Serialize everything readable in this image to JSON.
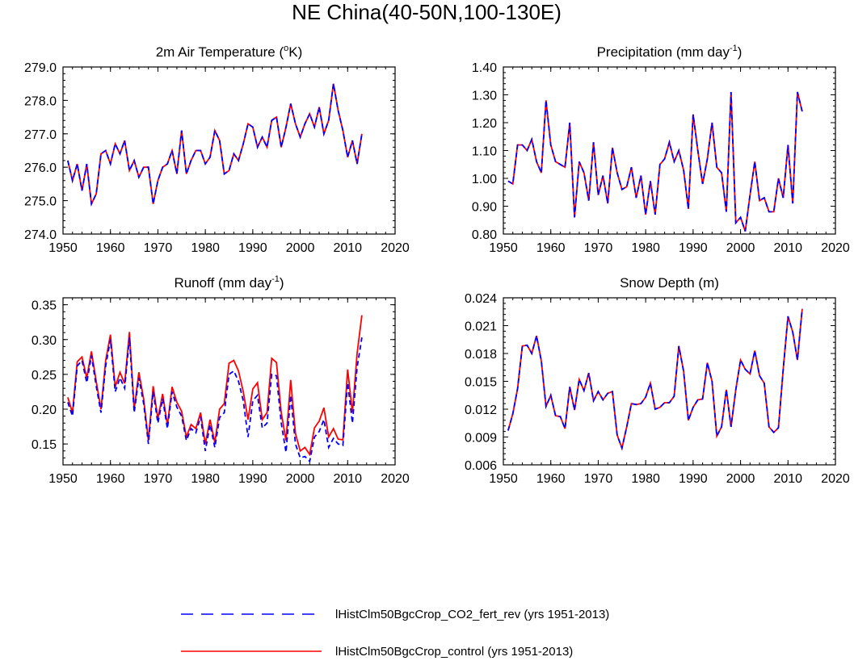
{
  "figure": {
    "title": "NE China(40-50N,100-130E)"
  },
  "legend": {
    "entries": [
      {
        "label": "lHistClm50BgcCrop_CO2_fert_rev (yrs 1951-2013)",
        "color": "#0000ff",
        "style": "dashed"
      },
      {
        "label": "lHistClm50BgcCrop_control (yrs 1951-2013)",
        "color": "#ff0000",
        "style": "solid"
      }
    ]
  },
  "chart_data": [
    {
      "type": "line",
      "title": "2m Air Temperature (",
      "title_sup": "o",
      "title_after": "K)",
      "xlim": [
        1950,
        2020
      ],
      "ylim": [
        274.0,
        279.0
      ],
      "xticks": [
        "1950",
        "1960",
        "1970",
        "1980",
        "1990",
        "2000",
        "2010",
        "2020"
      ],
      "yticks": [
        "274.0",
        "275.0",
        "276.0",
        "277.0",
        "278.0",
        "279.0"
      ],
      "x_start": 1951,
      "series": [
        {
          "name": "lHistClm50BgcCrop_control",
          "color": "#ff0000",
          "values": [
            276.2,
            275.6,
            276.1,
            275.3,
            276.1,
            274.9,
            275.2,
            276.4,
            276.5,
            276.1,
            276.7,
            276.4,
            276.8,
            275.9,
            276.2,
            275.7,
            276.0,
            276.0,
            274.9,
            275.6,
            276.0,
            276.1,
            276.5,
            275.8,
            277.1,
            275.8,
            276.2,
            276.5,
            276.5,
            276.1,
            276.3,
            277.1,
            276.8,
            275.8,
            275.9,
            276.4,
            276.2,
            276.7,
            277.3,
            277.2,
            276.6,
            276.9,
            276.6,
            277.4,
            277.5,
            276.6,
            277.2,
            277.9,
            277.3,
            276.9,
            277.3,
            277.6,
            277.2,
            277.8,
            277.0,
            277.4,
            278.5,
            277.7,
            277.1,
            276.3,
            276.8,
            276.1,
            277.0
          ]
        },
        {
          "name": "lHistClm50BgcCrop_CO2_fert_rev",
          "color": "#0000ff",
          "values": [
            276.2,
            275.6,
            276.1,
            275.3,
            276.1,
            274.9,
            275.2,
            276.4,
            276.5,
            276.1,
            276.7,
            276.4,
            276.8,
            275.9,
            276.2,
            275.7,
            276.0,
            276.0,
            274.9,
            275.6,
            276.0,
            276.1,
            276.5,
            275.8,
            277.1,
            275.8,
            276.2,
            276.5,
            276.5,
            276.1,
            276.3,
            277.1,
            276.8,
            275.8,
            275.9,
            276.4,
            276.2,
            276.7,
            277.3,
            277.2,
            276.6,
            276.9,
            276.6,
            277.4,
            277.5,
            276.6,
            277.2,
            277.9,
            277.3,
            276.9,
            277.3,
            277.6,
            277.2,
            277.8,
            277.0,
            277.4,
            278.5,
            277.7,
            277.1,
            276.3,
            276.8,
            276.1,
            277.0
          ]
        }
      ]
    },
    {
      "type": "line",
      "title": "Precipitation (mm day",
      "title_sup": "-1",
      "title_after": ")",
      "xlim": [
        1950,
        2020
      ],
      "ylim": [
        0.8,
        1.4
      ],
      "xticks": [
        "1950",
        "1960",
        "1970",
        "1980",
        "1990",
        "2000",
        "2010",
        "2020"
      ],
      "yticks": [
        "0.80",
        "0.90",
        "1.00",
        "1.10",
        "1.20",
        "1.30",
        "1.40"
      ],
      "x_start": 1951,
      "series": [
        {
          "name": "lHistClm50BgcCrop_control",
          "color": "#ff0000",
          "values": [
            0.99,
            0.98,
            1.12,
            1.12,
            1.1,
            1.14,
            1.06,
            1.02,
            1.28,
            1.12,
            1.06,
            1.05,
            1.04,
            1.2,
            0.86,
            1.06,
            1.02,
            0.92,
            1.13,
            0.94,
            1.01,
            0.91,
            1.11,
            1.02,
            0.96,
            0.97,
            1.04,
            0.93,
            1.01,
            0.87,
            0.99,
            0.87,
            1.05,
            1.07,
            1.13,
            1.06,
            1.1,
            1.03,
            0.89,
            1.23,
            1.1,
            0.98,
            1.07,
            1.2,
            1.04,
            1.02,
            0.88,
            1.31,
            0.84,
            0.86,
            0.81,
            0.94,
            1.06,
            0.92,
            0.93,
            0.88,
            0.88,
            1.0,
            0.93,
            1.12,
            0.91,
            1.31,
            1.24
          ]
        },
        {
          "name": "lHistClm50BgcCrop_CO2_fert_rev",
          "color": "#0000ff",
          "values": [
            0.99,
            0.98,
            1.12,
            1.12,
            1.1,
            1.14,
            1.06,
            1.02,
            1.28,
            1.12,
            1.06,
            1.05,
            1.04,
            1.2,
            0.86,
            1.06,
            1.02,
            0.92,
            1.13,
            0.94,
            1.01,
            0.91,
            1.11,
            1.02,
            0.96,
            0.97,
            1.04,
            0.93,
            1.01,
            0.87,
            0.99,
            0.87,
            1.05,
            1.07,
            1.13,
            1.06,
            1.1,
            1.03,
            0.89,
            1.23,
            1.1,
            0.98,
            1.07,
            1.2,
            1.04,
            1.02,
            0.88,
            1.31,
            0.84,
            0.86,
            0.81,
            0.94,
            1.06,
            0.92,
            0.93,
            0.88,
            0.88,
            1.0,
            0.93,
            1.12,
            0.91,
            1.31,
            1.24
          ]
        }
      ]
    },
    {
      "type": "line",
      "title": "Runoff (mm day",
      "title_sup": "-1",
      "title_after": ")",
      "xlim": [
        1950,
        2020
      ],
      "ylim": [
        0.12,
        0.36
      ],
      "yticks_values": [
        0.15,
        0.2,
        0.25,
        0.3,
        0.35
      ],
      "xticks": [
        "1950",
        "1960",
        "1970",
        "1980",
        "1990",
        "2000",
        "2010",
        "2020"
      ],
      "yticks": [
        "0.15",
        "0.20",
        "0.25",
        "0.30",
        "0.35"
      ],
      "x_start": 1951,
      "series": [
        {
          "name": "lHistClm50BgcCrop_control",
          "color": "#ff0000",
          "values": [
            0.217,
            0.195,
            0.268,
            0.275,
            0.245,
            0.283,
            0.24,
            0.2,
            0.27,
            0.307,
            0.232,
            0.253,
            0.237,
            0.311,
            0.2,
            0.253,
            0.215,
            0.155,
            0.233,
            0.186,
            0.222,
            0.177,
            0.232,
            0.21,
            0.197,
            0.16,
            0.178,
            0.172,
            0.195,
            0.15,
            0.185,
            0.152,
            0.2,
            0.208,
            0.266,
            0.27,
            0.255,
            0.225,
            0.185,
            0.229,
            0.238,
            0.185,
            0.195,
            0.273,
            0.267,
            0.195,
            0.155,
            0.242,
            0.165,
            0.14,
            0.145,
            0.135,
            0.173,
            0.183,
            0.202,
            0.16,
            0.172,
            0.157,
            0.156,
            0.257,
            0.195,
            0.28,
            0.335
          ]
        },
        {
          "name": "lHistClm50BgcCrop_CO2_fert_rev",
          "color": "#0000ff",
          "values": [
            0.21,
            0.19,
            0.262,
            0.27,
            0.238,
            0.277,
            0.233,
            0.195,
            0.262,
            0.3,
            0.225,
            0.245,
            0.23,
            0.303,
            0.195,
            0.245,
            0.208,
            0.15,
            0.225,
            0.18,
            0.215,
            0.172,
            0.225,
            0.203,
            0.19,
            0.155,
            0.172,
            0.166,
            0.189,
            0.14,
            0.178,
            0.145,
            0.188,
            0.195,
            0.25,
            0.255,
            0.24,
            0.212,
            0.16,
            0.212,
            0.22,
            0.173,
            0.18,
            0.25,
            0.248,
            0.18,
            0.138,
            0.22,
            0.15,
            0.13,
            0.132,
            0.125,
            0.16,
            0.168,
            0.185,
            0.145,
            0.158,
            0.15,
            0.148,
            0.238,
            0.18,
            0.26,
            0.303
          ]
        }
      ]
    },
    {
      "type": "line",
      "title": "Snow Depth (m)",
      "title_sup": "",
      "title_after": "",
      "xlim": [
        1950,
        2020
      ],
      "ylim": [
        0.006,
        0.024
      ],
      "xticks": [
        "1950",
        "1960",
        "1970",
        "1980",
        "1990",
        "2000",
        "2010",
        "2020"
      ],
      "yticks": [
        "0.006",
        "0.009",
        "0.012",
        "0.015",
        "0.018",
        "0.021",
        "0.024"
      ],
      "x_start": 1951,
      "series": [
        {
          "name": "lHistClm50BgcCrop_control",
          "color": "#ff0000",
          "values": [
            0.0097,
            0.0115,
            0.0142,
            0.0188,
            0.0189,
            0.018,
            0.0199,
            0.0172,
            0.0123,
            0.0135,
            0.0113,
            0.0112,
            0.0099,
            0.0144,
            0.0119,
            0.0152,
            0.014,
            0.0159,
            0.0129,
            0.0139,
            0.013,
            0.0137,
            0.0139,
            0.0092,
            0.0078,
            0.0101,
            0.0126,
            0.0125,
            0.0126,
            0.0133,
            0.0148,
            0.012,
            0.0122,
            0.0127,
            0.0127,
            0.0134,
            0.0188,
            0.0161,
            0.0108,
            0.0122,
            0.013,
            0.0131,
            0.017,
            0.015,
            0.0091,
            0.0101,
            0.0141,
            0.0101,
            0.0141,
            0.0173,
            0.0163,
            0.0158,
            0.0183,
            0.0156,
            0.0148,
            0.0101,
            0.0095,
            0.01,
            0.0163,
            0.022,
            0.0203,
            0.0173,
            0.0228
          ]
        },
        {
          "name": "lHistClm50BgcCrop_CO2_fert_rev",
          "color": "#0000ff",
          "values": [
            0.0097,
            0.0115,
            0.0142,
            0.0188,
            0.0189,
            0.018,
            0.0199,
            0.0172,
            0.0123,
            0.0135,
            0.0113,
            0.0112,
            0.0099,
            0.0144,
            0.0119,
            0.0152,
            0.014,
            0.0159,
            0.0129,
            0.0139,
            0.013,
            0.0137,
            0.0139,
            0.0092,
            0.0078,
            0.0101,
            0.0126,
            0.0125,
            0.0126,
            0.0133,
            0.0148,
            0.012,
            0.0122,
            0.0127,
            0.0127,
            0.0134,
            0.0188,
            0.0161,
            0.0108,
            0.0122,
            0.013,
            0.0131,
            0.017,
            0.015,
            0.0091,
            0.0101,
            0.0141,
            0.0101,
            0.0141,
            0.0173,
            0.0163,
            0.0158,
            0.0183,
            0.0156,
            0.0148,
            0.0101,
            0.0095,
            0.01,
            0.0163,
            0.022,
            0.0203,
            0.0173,
            0.0228
          ]
        }
      ]
    }
  ]
}
